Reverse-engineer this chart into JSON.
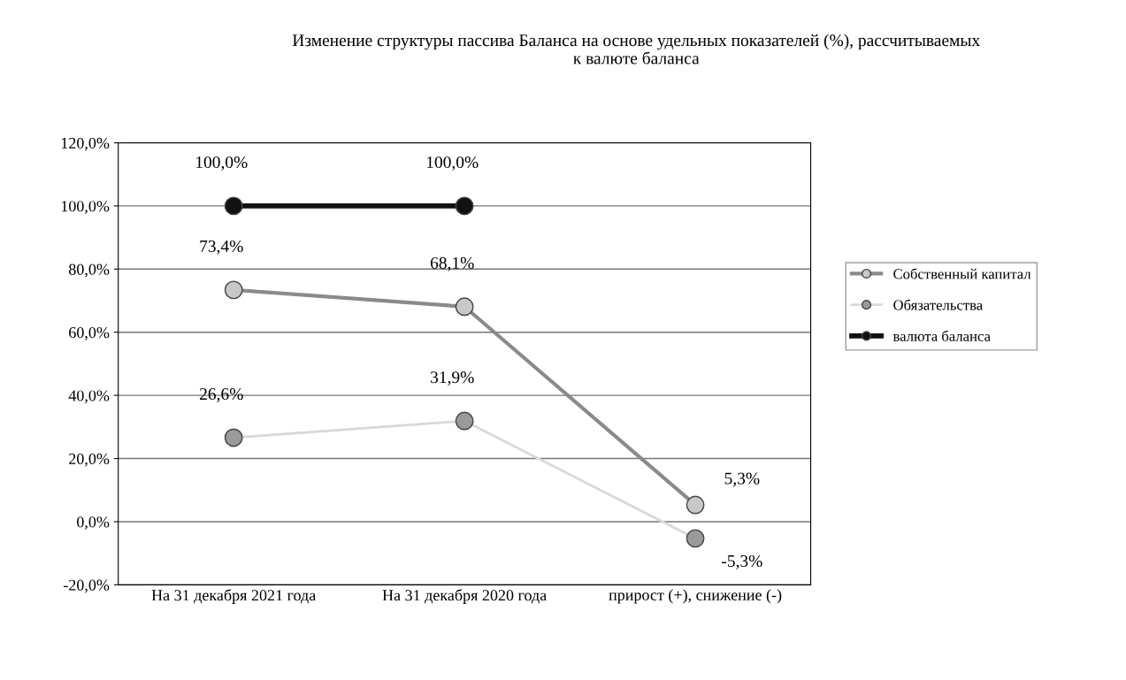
{
  "chart_data": {
    "type": "line",
    "title": "Изменение структуры пассива Баланса на основе удельных показателей (%), рассчитываемых\nк валюте баланса",
    "categories": [
      "На 31 декабря 2021 года",
      "На 31 декабря 2020 года",
      "прирост (+), снижение (-)"
    ],
    "series": [
      {
        "name": "Собственный капитал",
        "color": "#8a8a8a",
        "colors": [
          "#c8c8c8",
          "#c8c8c8",
          "#c8c8c8"
        ],
        "values": [
          73.4,
          68.1,
          5.3
        ],
        "value_labels": [
          "73,4%",
          "68,1%",
          "5,3%"
        ]
      },
      {
        "name": "Обязательства",
        "color": "#d9d9d9",
        "colors": [
          "#9a9a9a",
          "#9a9a9a",
          "#9a9a9a"
        ],
        "values": [
          26.6,
          31.9,
          -5.3
        ],
        "value_labels": [
          "26,6%",
          "31,9%",
          "-5,3%"
        ]
      },
      {
        "name": "валюта баланса",
        "color": "#111111",
        "colors": [
          "#111111",
          "#111111",
          null
        ],
        "values": [
          100.0,
          100.0,
          null
        ],
        "value_labels": [
          "100,0%",
          "100,0%",
          null
        ]
      }
    ],
    "ylim": [
      -20,
      120
    ],
    "yticks": [
      {
        "value": -20,
        "label": "-20,0%"
      },
      {
        "value": 0,
        "label": "0,0%"
      },
      {
        "value": 20,
        "label": "20,0%"
      },
      {
        "value": 40,
        "label": "40,0%"
      },
      {
        "value": 60,
        "label": "60,0%"
      },
      {
        "value": 80,
        "label": "80,0%"
      },
      {
        "value": 100,
        "label": "100,0%"
      },
      {
        "value": 120,
        "label": "120,0%"
      }
    ],
    "grid": "y",
    "legend": "right",
    "marker": "circle",
    "line_style": "solid"
  }
}
